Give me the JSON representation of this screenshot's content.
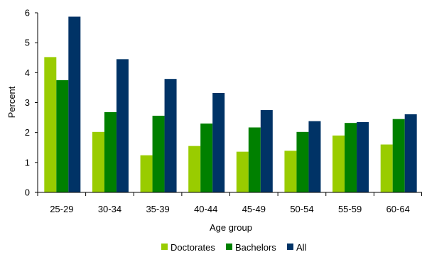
{
  "chart_data": {
    "type": "bar",
    "title": "",
    "xlabel": "Age group",
    "ylabel": "Percent",
    "ylim": [
      0,
      6
    ],
    "yticks": [
      "0",
      "1",
      "2",
      "3",
      "4",
      "5",
      "6"
    ],
    "grid": false,
    "legend_position": "bottom",
    "categories": [
      "25-29",
      "30-34",
      "35-39",
      "40-44",
      "45-49",
      "50-54",
      "55-59",
      "60-64"
    ],
    "series": [
      {
        "name": "Doctorates",
        "color": "#99cc00",
        "values": [
          4.52,
          2.02,
          1.24,
          1.55,
          1.36,
          1.39,
          1.9,
          1.6
        ]
      },
      {
        "name": "Bachelors",
        "color": "#008000",
        "values": [
          3.75,
          2.68,
          2.56,
          2.3,
          2.17,
          2.02,
          2.32,
          2.45
        ]
      },
      {
        "name": "All",
        "color": "#003366",
        "values": [
          5.87,
          4.45,
          3.79,
          3.32,
          2.75,
          2.38,
          2.35,
          2.61
        ]
      }
    ]
  }
}
